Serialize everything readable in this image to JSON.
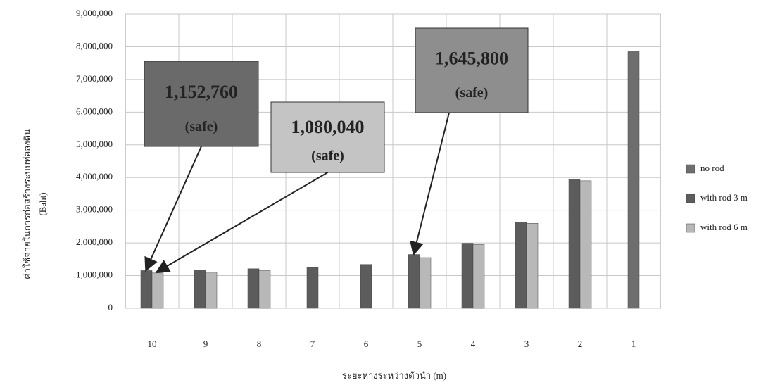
{
  "chart_data": {
    "type": "bar",
    "y_label": "ค่าใช้จ่ายในการก่อสร้างระบบท่อลงดิน",
    "y_unit": "(Baht)",
    "x_label": "ระยะห่างระหว่างตัวนำ (m)",
    "categories": [
      "10",
      "9",
      "8",
      "7",
      "6",
      "5",
      "4",
      "3",
      "2",
      "1"
    ],
    "series": [
      {
        "name": "no rod",
        "color": "#6e6e6e",
        "values": [
          null,
          null,
          null,
          null,
          null,
          null,
          null,
          null,
          null,
          7850000
        ]
      },
      {
        "name": "with rod 3 m",
        "color": "#5c5c5c",
        "values": [
          1152760,
          1170000,
          1210000,
          1250000,
          1340000,
          1645800,
          1990000,
          2640000,
          3950000,
          null
        ]
      },
      {
        "name": "with rod 6 m",
        "color": "#b8b8b8",
        "values": [
          1080040,
          1100000,
          1160000,
          null,
          null,
          1550000,
          1950000,
          2600000,
          3900000,
          null
        ]
      }
    ],
    "annotations": [
      {
        "text": "1,152,760",
        "note": "(safe)"
      },
      {
        "text": "1,080,040",
        "note": "(safe)"
      },
      {
        "text": "1,645,800",
        "note": "(safe)"
      }
    ],
    "ylim": [
      0,
      9000000
    ],
    "yticks": [
      0,
      {
        "value": 1000000,
        "label": "1,000,000"
      },
      {
        "value": 2000000,
        "label": "2,000,000"
      },
      {
        "value": 3000000,
        "label": "3,000,000"
      },
      {
        "value": 4000000,
        "label": "4,000,000"
      },
      {
        "value": 5000000,
        "label": "5,000,000"
      },
      {
        "value": 6000000,
        "label": "6,000,000"
      },
      {
        "value": 7000000,
        "label": "7,000,000"
      },
      {
        "value": 8000000,
        "label": "8,000,000"
      },
      {
        "value": 9000000,
        "label": "9,000,000"
      }
    ],
    "grid": true
  }
}
